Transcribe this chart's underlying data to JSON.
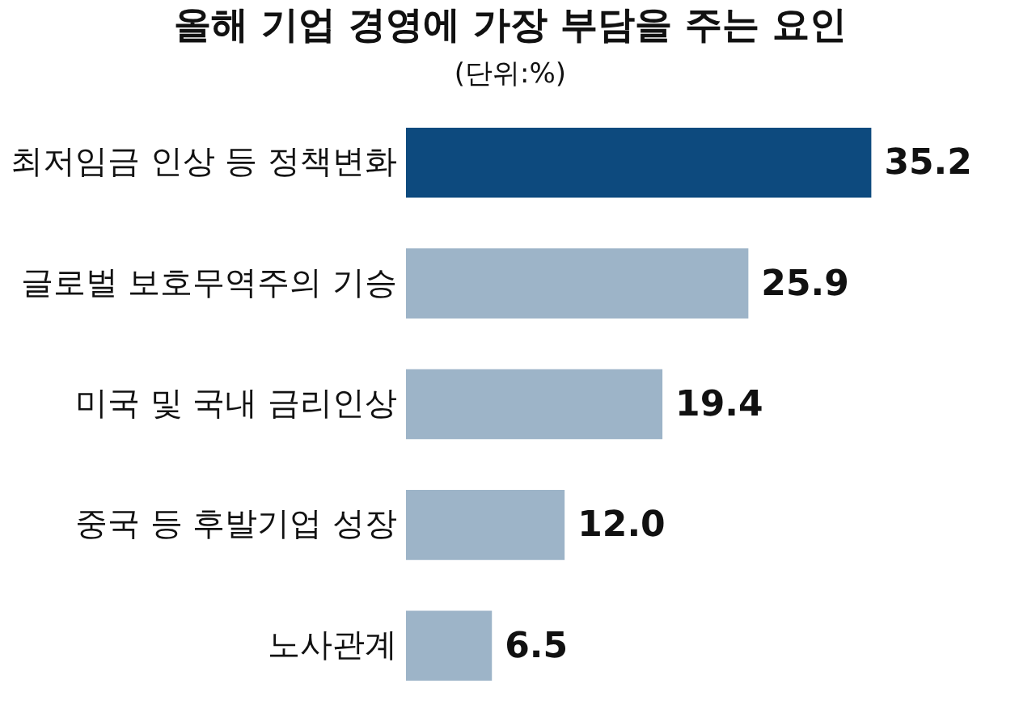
{
  "chart_data": {
    "type": "bar",
    "orientation": "horizontal",
    "title": "올해 기업 경영에 가장 부담을 주는 요인",
    "subtitle": "(단위:%)",
    "categories": [
      "최저임금 인상 등 정책변화",
      "글로벌 보호무역주의 기승",
      "미국 및 국내 금리인상",
      "중국 등 후발기업 성장",
      "노사관계"
    ],
    "values": [
      35.2,
      25.9,
      19.4,
      12.0,
      6.5
    ],
    "colors": [
      "#0d4a7e",
      "#9db4c8",
      "#9db4c8",
      "#9db4c8",
      "#9db4c8"
    ],
    "value_labels": [
      "35.2",
      "25.9",
      "19.4",
      "12.0",
      "6.5"
    ]
  }
}
